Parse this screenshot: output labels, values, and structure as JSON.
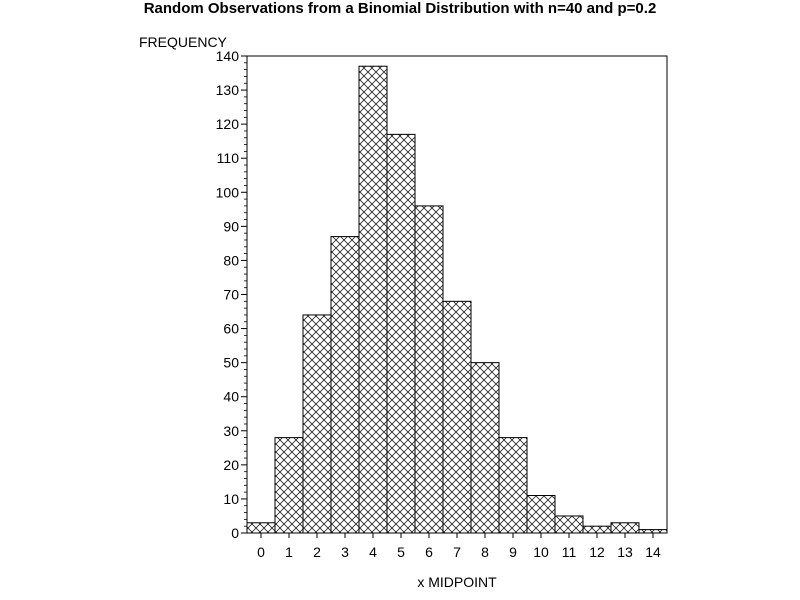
{
  "chart_data": {
    "type": "bar",
    "title": "Random Observations from a Binomial Distribution with n=40 and p=0.2",
    "ylabel": "FREQUENCY",
    "xlabel": "x MIDPOINT",
    "categories": [
      "0",
      "1",
      "2",
      "3",
      "4",
      "5",
      "6",
      "7",
      "8",
      "9",
      "10",
      "11",
      "12",
      "13",
      "14"
    ],
    "values": [
      3,
      28,
      64,
      87,
      137,
      117,
      96,
      68,
      50,
      28,
      11,
      5,
      2,
      3,
      1
    ],
    "ylim": [
      0,
      140
    ],
    "yticks": [
      0,
      10,
      20,
      30,
      40,
      50,
      60,
      70,
      80,
      90,
      100,
      110,
      120,
      130,
      140
    ],
    "grid": false,
    "legend": "none",
    "bar_fill": "crosshatch",
    "bar_color": "#000000",
    "background": "#ffffff"
  }
}
